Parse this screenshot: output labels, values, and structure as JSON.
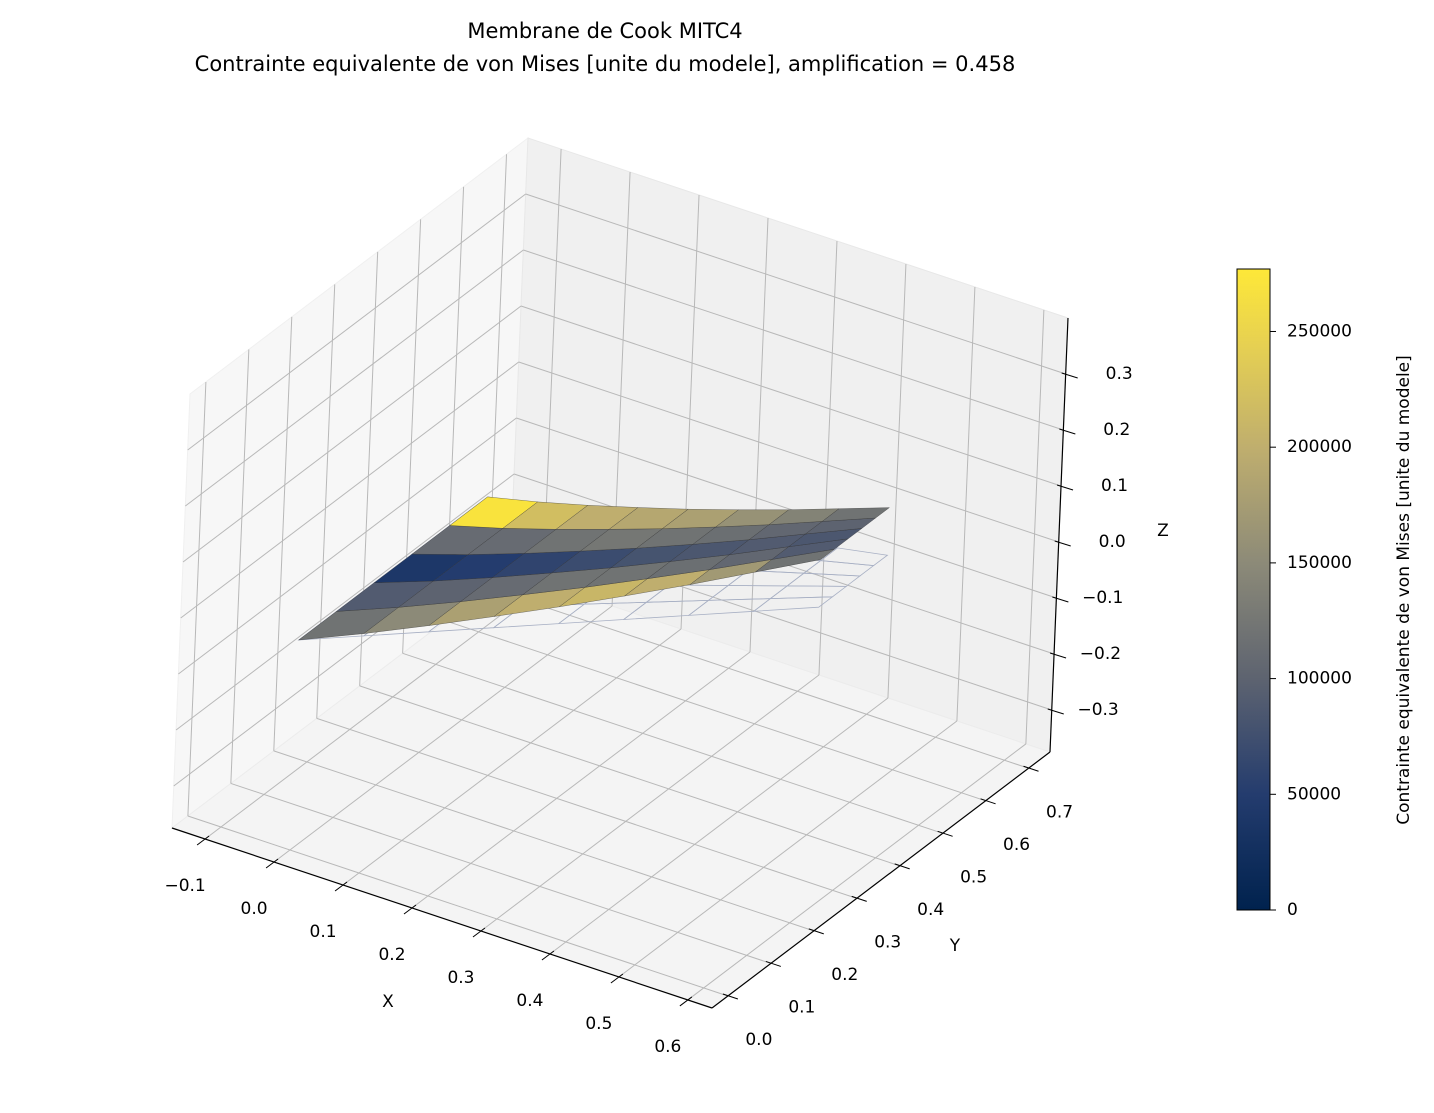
{
  "chart_data": {
    "type": "surface3d",
    "title": "Membrane de Cook MITC4",
    "subtitle": "Contrainte equivalente de von Mises [unite du modele], amplification = 0.458",
    "xlabel": "X",
    "ylabel": "Y",
    "zlabel": "Z",
    "xlim": [
      -0.148,
      0.635
    ],
    "ylim": [
      -0.037,
      0.75
    ],
    "zlim": [
      -0.375,
      0.4
    ],
    "xticks": [
      {
        "value": -0.1,
        "label": "−0.1"
      },
      {
        "value": 0,
        "label": "0.0"
      },
      0.1,
      0.2,
      0.3,
      0.4,
      0.5,
      0.6
    ],
    "yticks": [
      {
        "value": 0,
        "label": "0.0"
      },
      0.1,
      0.2,
      0.3,
      0.4,
      0.5,
      0.6,
      0.7
    ],
    "zticks": [
      {
        "value": -0.3,
        "label": "−0.3"
      },
      {
        "value": -0.2,
        "label": "−0.2"
      },
      {
        "value": -0.1,
        "label": "−0.1"
      },
      {
        "value": 0,
        "label": "0.0"
      },
      0.1,
      0.2,
      0.3
    ],
    "grid": true,
    "surface": {
      "cmap": "cividis",
      "x": [
        0,
        0.06,
        0.12,
        0.18,
        0.24,
        0.3,
        0.36,
        0.42,
        0.48
      ],
      "y": [
        [
          0,
          0.055,
          0.11,
          0.165,
          0.22,
          0.275,
          0.33,
          0.385,
          0.44
        ],
        [
          0.088,
          0.136,
          0.184,
          0.232,
          0.28,
          0.328,
          0.376,
          0.424,
          0.472
        ],
        [
          0.176,
          0.217,
          0.258,
          0.299,
          0.34,
          0.381,
          0.422,
          0.463,
          0.504
        ],
        [
          0.264,
          0.298,
          0.332,
          0.366,
          0.4,
          0.434,
          0.468,
          0.502,
          0.536
        ],
        [
          0.352,
          0.379,
          0.406,
          0.433,
          0.46,
          0.487,
          0.514,
          0.541,
          0.568
        ],
        [
          0.44,
          0.46,
          0.48,
          0.5,
          0.52,
          0.54,
          0.56,
          0.58,
          0.6
        ]
      ],
      "z": [
        0,
        0.004,
        0.011,
        0.02,
        0.03,
        0.042,
        0.055,
        0.07,
        0.085
      ],
      "z_undeformed": 0,
      "stress": [
        [
          120000,
          150000,
          180000,
          200000,
          210000,
          200000,
          170000,
          120000
        ],
        [
          90000,
          100000,
          110000,
          120000,
          120000,
          115000,
          105000,
          90000
        ],
        [
          40000,
          50000,
          60000,
          70000,
          80000,
          85000,
          90000,
          85000
        ],
        [
          110000,
          110000,
          120000,
          125000,
          120000,
          115000,
          105000,
          100000
        ],
        [
          270000,
          220000,
          200000,
          190000,
          180000,
          160000,
          140000,
          120000
        ]
      ]
    },
    "colorbar": {
      "label": "Contrainte equivalente de von Mises [unite du modele]",
      "clim": [
        0,
        277000
      ],
      "ticks": [
        0,
        50000,
        100000,
        150000,
        200000,
        250000
      ]
    }
  }
}
